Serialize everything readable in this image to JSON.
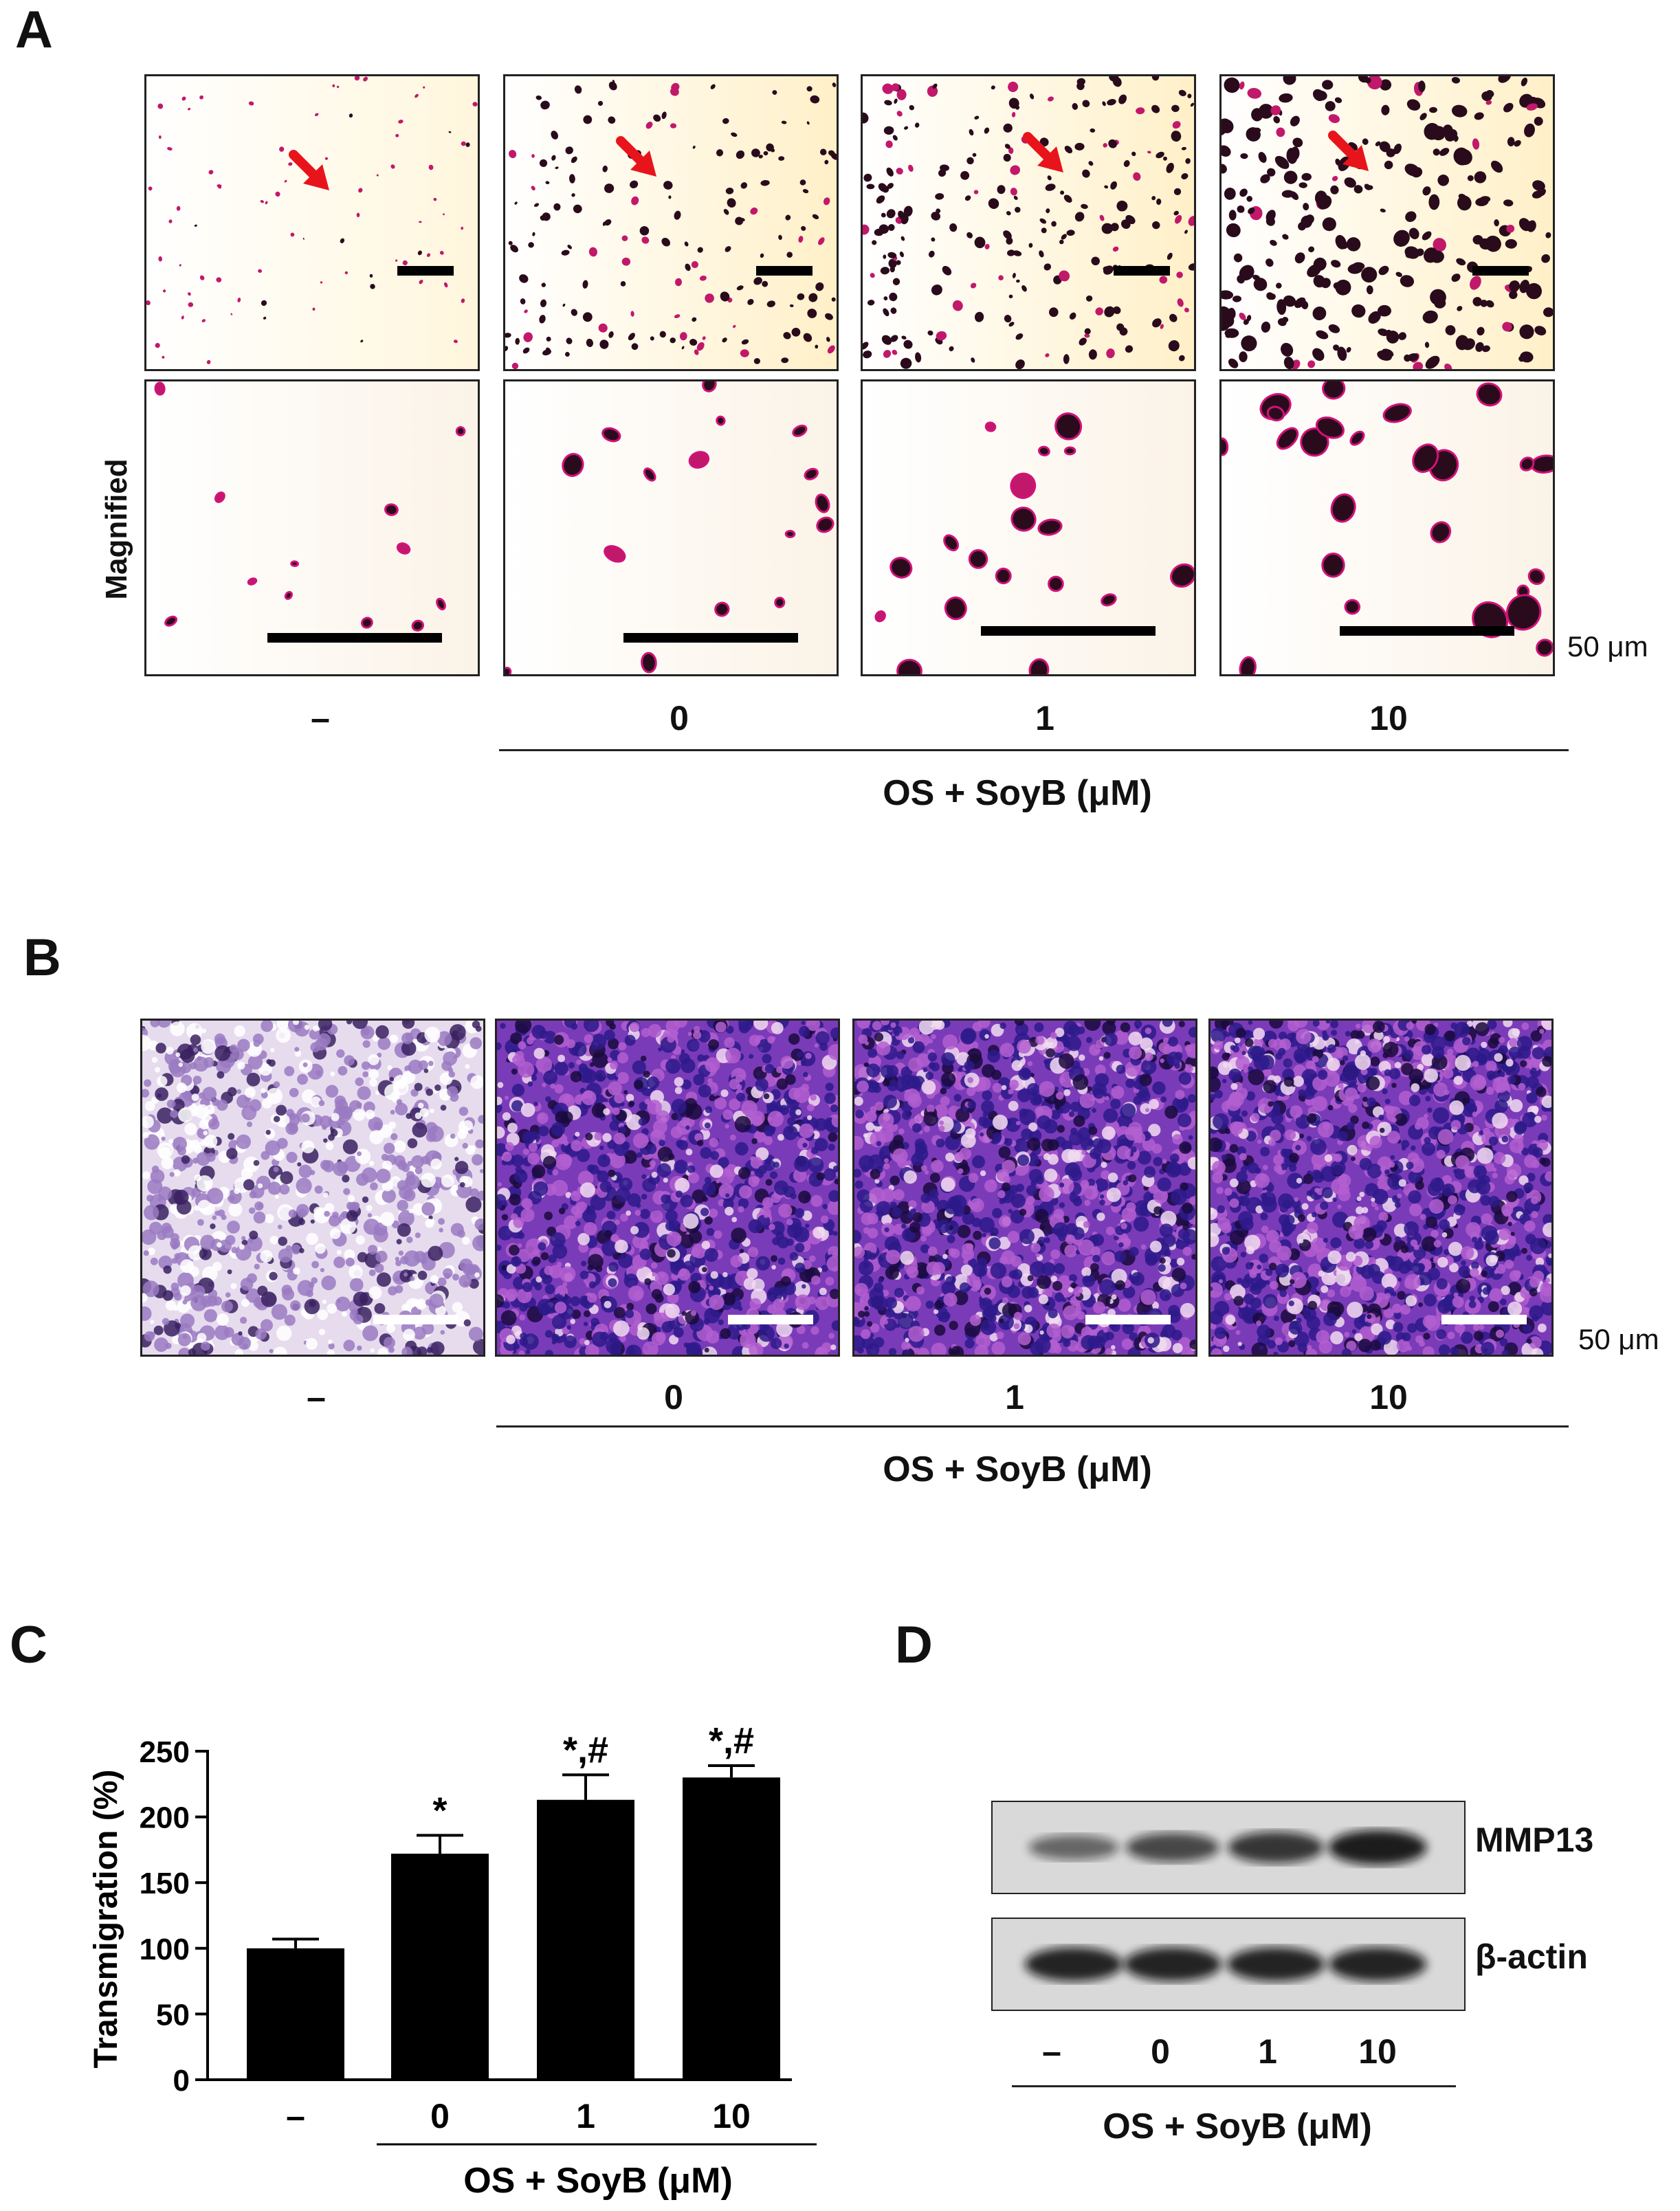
{
  "panels": {
    "a": {
      "letter": "A",
      "row_label": "Magnified",
      "scale_text": "50 μm",
      "conditions": [
        "–",
        "0",
        "1",
        "10"
      ],
      "group_label": "OS + SoyB (μM)"
    },
    "b": {
      "letter": "B",
      "scale_text": "50 μm",
      "conditions": [
        "–",
        "0",
        "1",
        "10"
      ],
      "group_label": "OS + SoyB (μM)"
    },
    "c": {
      "letter": "C",
      "group_label": "OS + SoyB (μM)"
    },
    "d": {
      "letter": "D",
      "bands": [
        "MMP13",
        "β-actin"
      ],
      "conditions": [
        "–",
        "0",
        "1",
        "10"
      ],
      "group_label": "OS + SoyB (μM)"
    }
  },
  "chart_data": {
    "type": "bar",
    "categories": [
      "–",
      "0",
      "1",
      "10"
    ],
    "values": [
      100,
      172,
      213,
      230
    ],
    "errors": [
      7,
      14,
      19,
      9
    ],
    "annotations": [
      "",
      "*",
      "*,#",
      "*,#"
    ],
    "ylabel": "Transmigration (%)",
    "yticks": [
      "0",
      "50",
      "100",
      "150",
      "200",
      "250"
    ],
    "ylim": [
      0,
      250
    ],
    "bar_color": "#000000",
    "grid": false
  },
  "colors": {
    "stain_a": "#c2186b",
    "stain_b": "#5b2c9e",
    "arrow": "#e8141c"
  }
}
